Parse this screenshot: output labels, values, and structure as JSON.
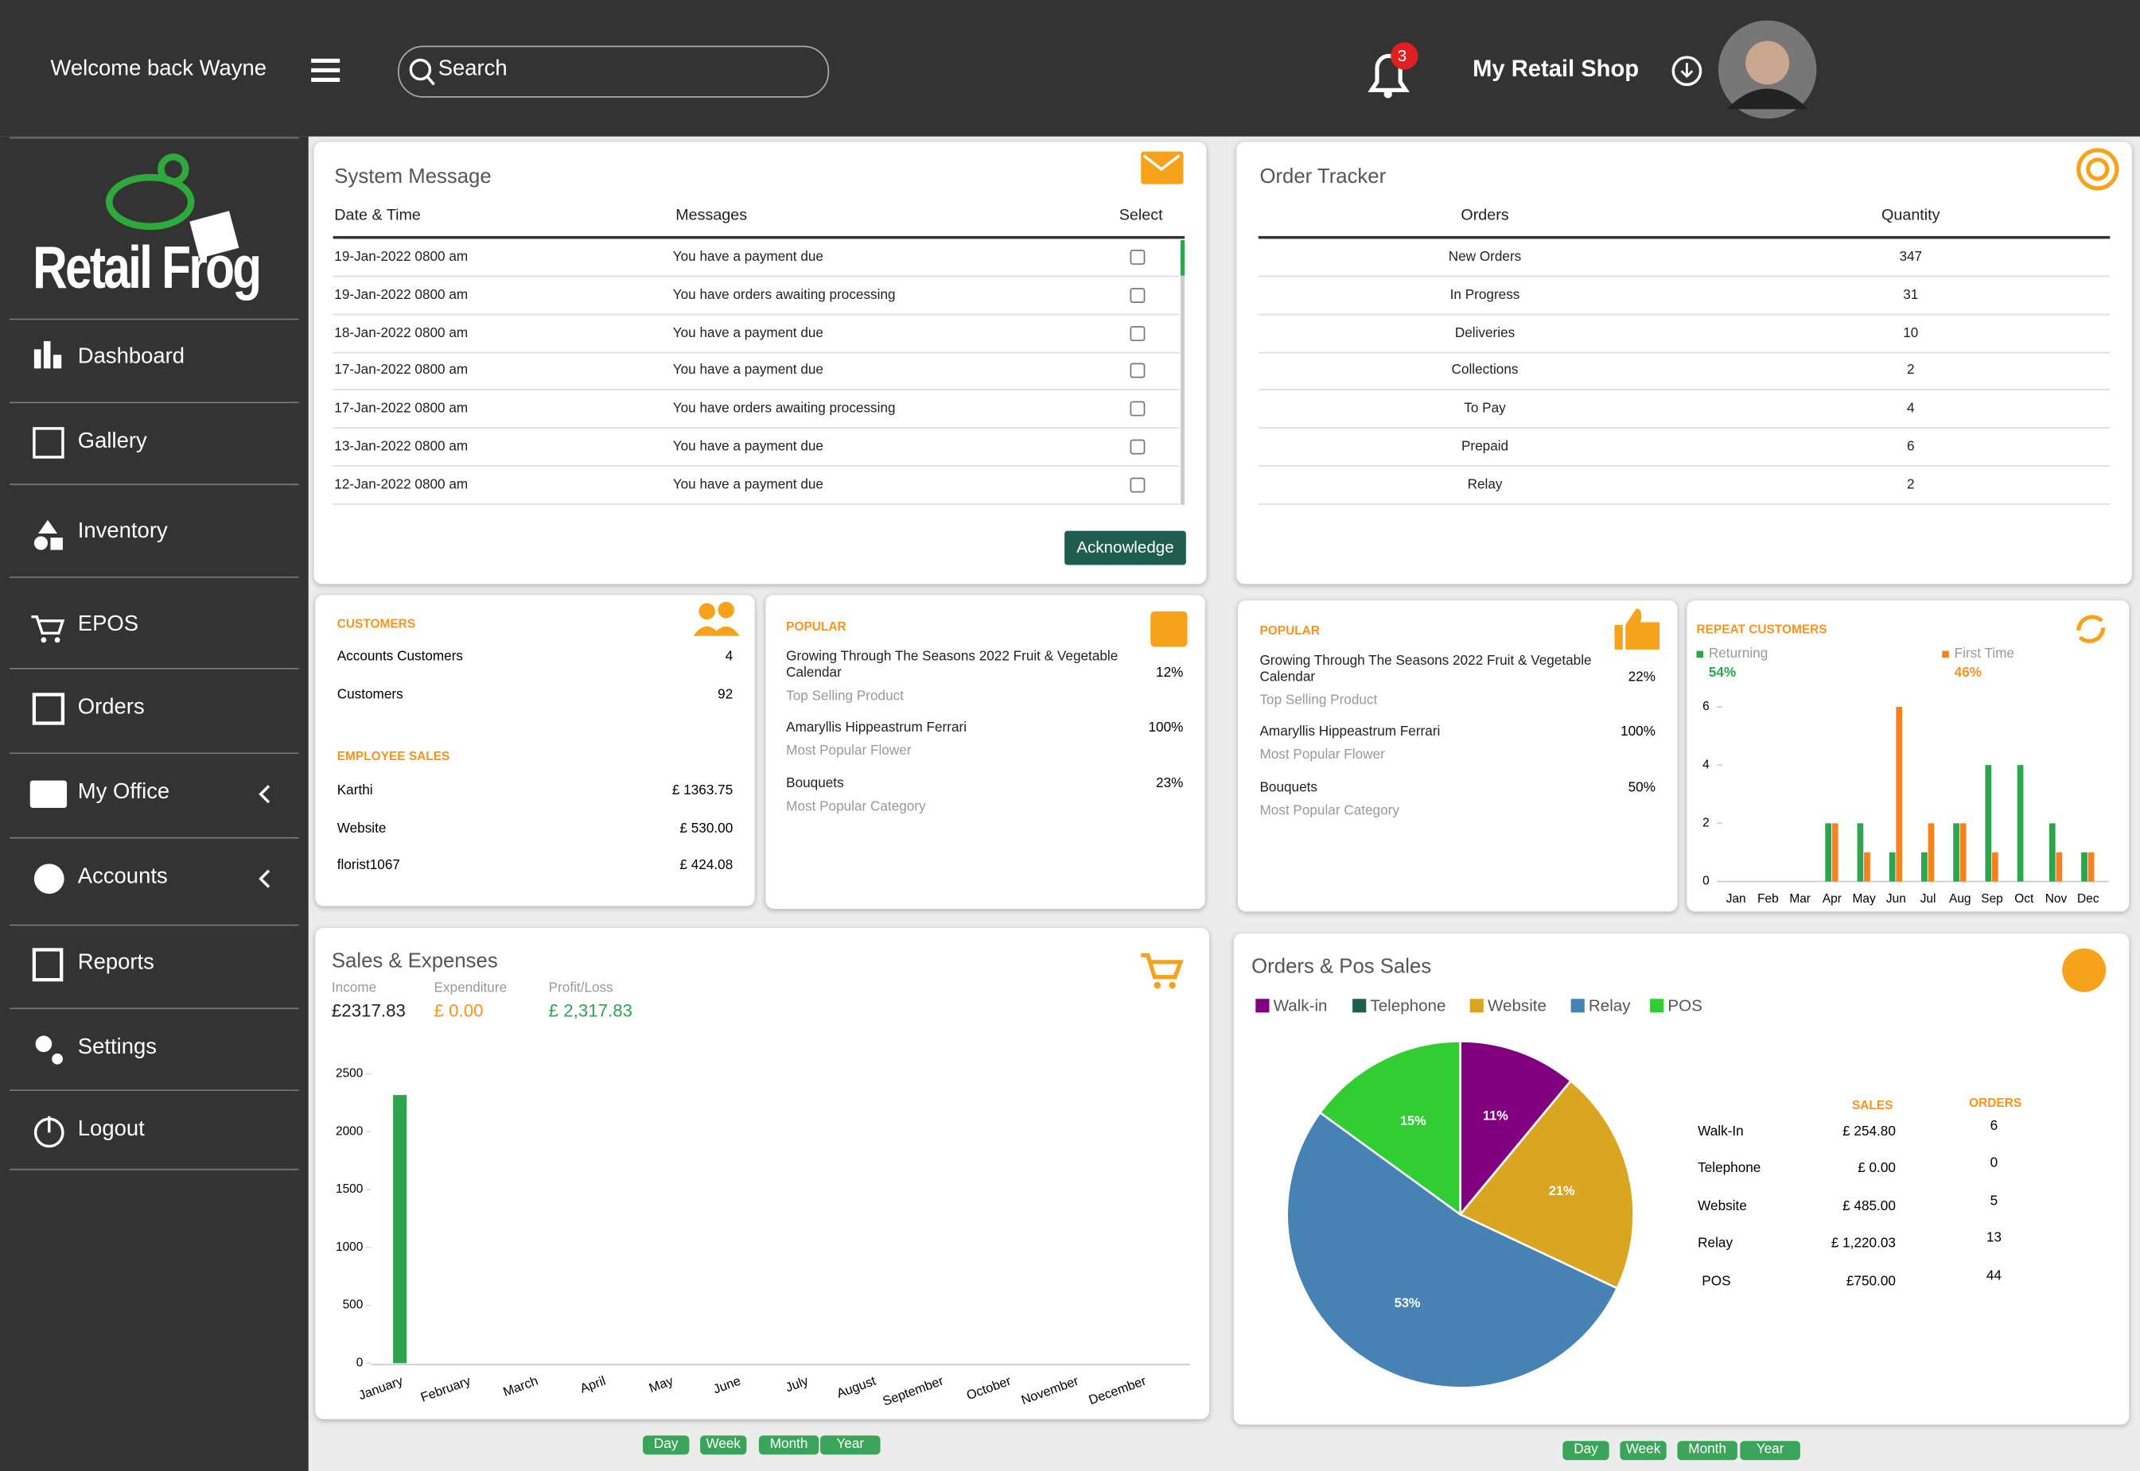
{
  "header": {
    "welcome": "Welcome back Wayne",
    "search": "Search",
    "notifications": 3,
    "shop": "My Retail Shop"
  },
  "sidebar": {
    "logo": "Retail Frog",
    "items": [
      "Dashboard",
      "Gallery",
      "Inventory",
      "EPOS",
      "Orders",
      "My Office",
      "Accounts",
      "Reports",
      "Settings",
      "Logout"
    ]
  },
  "system_message": {
    "title": "System Message",
    "columns": [
      "Date & Time",
      "Messages",
      "Select"
    ],
    "rows": [
      [
        "19-Jan-2022 0800 am",
        "You have a payment due"
      ],
      [
        "19-Jan-2022 0800 am",
        "You have orders awaiting processing"
      ],
      [
        "18-Jan-2022 0800 am",
        "You have a payment due"
      ],
      [
        "17-Jan-2022 0800 am",
        "You have a payment due"
      ],
      [
        "17-Jan-2022 0800 am",
        "You have orders awaiting processing"
      ],
      [
        "13-Jan-2022 0800 am",
        "You have a payment due"
      ],
      [
        "12-Jan-2022 0800 am",
        "You have a payment due"
      ]
    ],
    "button": "Acknowledge"
  },
  "order_tracker": {
    "title": "Order Tracker",
    "columns": [
      "Orders",
      "Quantity"
    ],
    "rows": [
      [
        "New Orders",
        347
      ],
      [
        "In Progress",
        31
      ],
      [
        "Deliveries",
        10
      ],
      [
        "Collections",
        2
      ],
      [
        "To Pay",
        4
      ],
      [
        "Prepaid",
        6
      ],
      [
        "Relay",
        2
      ]
    ]
  },
  "customers": {
    "title": "CUSTOMERS",
    "rows": [
      [
        "Accounts Customers",
        4
      ],
      [
        "Customers",
        92
      ]
    ],
    "employee_title": "EMPLOYEE SALES",
    "employee_rows": [
      [
        "Karthi",
        "£ 1363.75"
      ],
      [
        "Website",
        "£ 530.00"
      ],
      [
        "florist1067",
        "£ 424.08"
      ]
    ]
  },
  "popular_1": {
    "title": "POPULAR",
    "items": [
      {
        "name": "Growing Through The Seasons 2022 Fruit & Vegetable Calendar",
        "pct": "12%",
        "sub": "Top Selling Product"
      },
      {
        "name": "Amaryllis Hippeastrum Ferrari",
        "pct": "100%",
        "sub": "Most Popular Flower"
      },
      {
        "name": "Bouquets",
        "pct": "23%",
        "sub": "Most Popular Category"
      }
    ]
  },
  "popular_2": {
    "title": "POPULAR",
    "items": [
      {
        "name": "Growing Through The Seasons 2022 Fruit & Vegetable Calendar",
        "pct": "22%",
        "sub": "Top Selling Product"
      },
      {
        "name": "Amaryllis Hippeastrum Ferrari",
        "pct": "100%",
        "sub": "Most Popular Flower"
      },
      {
        "name": "Bouquets",
        "pct": "50%",
        "sub": "Most Popular Category"
      }
    ]
  },
  "repeat_customers": {
    "type": "bar",
    "title": "REPEAT CUSTOMERS",
    "categories": [
      "Jan",
      "Feb",
      "Mar",
      "Apr",
      "May",
      "Jun",
      "Jul",
      "Aug",
      "Sep",
      "Oct",
      "Nov",
      "Dec"
    ],
    "series": [
      {
        "name": "Returning",
        "share": "54%",
        "color": "#2ea44f",
        "values": [
          0,
          0,
          0,
          2,
          2,
          1,
          1,
          2,
          4,
          4,
          2,
          1
        ]
      },
      {
        "name": "First Time",
        "share": "46%",
        "color": "#f5821f",
        "values": [
          0,
          0,
          0,
          2,
          1,
          6,
          2,
          2,
          1,
          0,
          1,
          1
        ]
      }
    ],
    "ylim": [
      0,
      6
    ],
    "yticks": [
      0,
      2,
      4,
      6
    ]
  },
  "sales_expenses": {
    "type": "bar",
    "title": "Sales & Expenses",
    "stats": [
      {
        "label": "Income",
        "value": "£2317.83",
        "color": "#222"
      },
      {
        "label": "Expenditure",
        "value": "£ 0.00",
        "color": "#f7941d"
      },
      {
        "label": "Profit/Loss",
        "value": "£ 2,317.83",
        "color": "#2ea44f"
      }
    ],
    "categories": [
      "January",
      "February",
      "March",
      "April",
      "May",
      "June",
      "July",
      "August",
      "September",
      "October",
      "November",
      "December"
    ],
    "values": [
      2317.83,
      0,
      0,
      0,
      0,
      0,
      0,
      0,
      0,
      0,
      0,
      0
    ],
    "color": "#2ea44f",
    "ylim": [
      0,
      2500
    ],
    "yticks": [
      0,
      500,
      1000,
      1500,
      2000,
      2500
    ]
  },
  "orders_pos": {
    "type": "pie",
    "title": "Orders & Pos Sales",
    "categories": [
      "Walk-in",
      "Telephone",
      "Website",
      "Relay",
      "POS"
    ],
    "colors": [
      "#800080",
      "#1f5d50",
      "#daa520",
      "#4682b4",
      "#32cd32"
    ],
    "values": [
      11,
      0,
      21,
      53,
      15
    ],
    "value_labels": [
      "11%",
      null,
      "21%",
      "53%",
      "15%"
    ],
    "table": {
      "columns": [
        "SALES",
        "ORDERS"
      ],
      "rows": [
        [
          "Walk-In",
          "£ 254.80",
          6
        ],
        [
          "Telephone",
          "£ 0.00",
          0
        ],
        [
          "Website",
          "£ 485.00",
          5
        ],
        [
          "Relay",
          "£ 1,220.03",
          13
        ],
        [
          "POS",
          "£750.00",
          44
        ]
      ]
    }
  },
  "period_buttons": [
    "Day",
    "Week",
    "Month",
    "Year"
  ]
}
